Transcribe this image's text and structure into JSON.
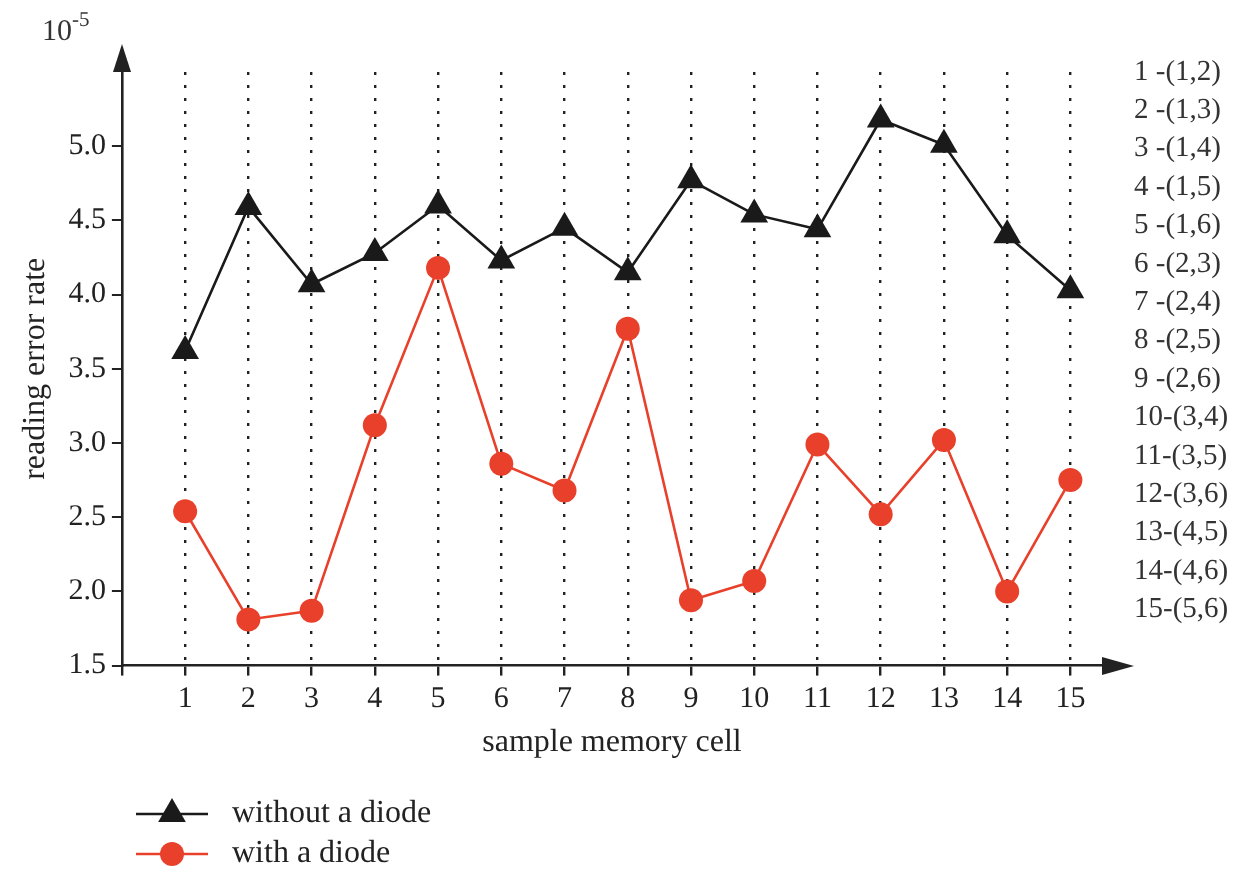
{
  "chart_data": {
    "type": "line",
    "xlabel": "sample memory cell",
    "ylabel": "reading error rate",
    "x": [
      1,
      2,
      3,
      4,
      5,
      6,
      7,
      8,
      9,
      10,
      11,
      12,
      13,
      14,
      15
    ],
    "series": [
      {
        "name": "without a diode",
        "color": "#1a1a1a",
        "marker": "triangle",
        "values": [
          3.62,
          4.59,
          4.07,
          4.28,
          4.6,
          4.23,
          4.45,
          4.15,
          4.77,
          4.54,
          4.44,
          5.18,
          5.01,
          4.4,
          4.03
        ]
      },
      {
        "name": "with a diode",
        "color": "#e8402a",
        "marker": "circle",
        "values": [
          2.54,
          1.81,
          1.87,
          3.12,
          4.18,
          2.86,
          2.68,
          3.77,
          1.94,
          2.07,
          2.99,
          2.52,
          3.02,
          2.0,
          2.75
        ]
      }
    ],
    "xlim": [
      0,
      15.5
    ],
    "xticks": [
      {
        "value": 0,
        "label": null
      },
      1,
      2,
      3,
      4,
      5,
      6,
      7,
      8,
      9,
      10,
      11,
      12,
      13,
      14,
      15
    ],
    "ylim": [
      1.5,
      5.5
    ],
    "yticks": [
      1.5,
      {
        "value": 2,
        "label": "2.0"
      },
      2.5,
      {
        "value": 3,
        "label": "3.0"
      },
      3.5,
      {
        "value": 4,
        "label": "4.0"
      },
      4.5,
      {
        "value": 5,
        "label": "5.0"
      }
    ],
    "grid": "x",
    "legend": "bottom left",
    "line_style": "solid",
    "annotations": [
      "10$^{-5}$",
      "1 -(1,2)",
      "2 -(1,3)",
      "3 -(1,4)",
      "4 -(1,5)",
      "5 -(1,6)",
      "6 -(2,3)",
      "7 -(2,4)",
      "8 -(2,5)",
      "9 -(2,6)",
      "10-(3,4)",
      "11-(3,5)",
      "12-(3,6)",
      "13-(4,5)",
      "14-(4,6)",
      "15-(5,6)"
    ]
  }
}
